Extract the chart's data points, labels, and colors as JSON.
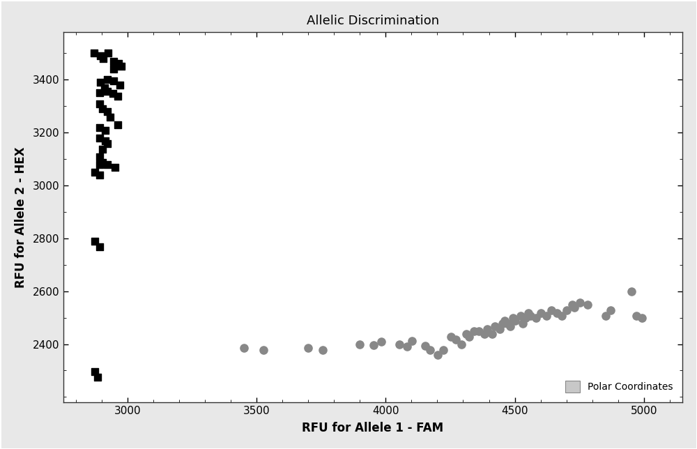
{
  "title": "Allelic Discrimination",
  "xlabel": "RFU for Allele 1 - FAM",
  "ylabel": "RFU for Allele 2 - HEX",
  "xlim": [
    2750,
    5150
  ],
  "ylim": [
    2180,
    3580
  ],
  "xticks": [
    3000,
    3500,
    4000,
    4500,
    5000
  ],
  "yticks": [
    2400,
    2600,
    2800,
    3000,
    3200,
    3400
  ],
  "legend_label": "Polar Coordinates",
  "black_squares": [
    [
      2870,
      3500
    ],
    [
      2895,
      3490
    ],
    [
      2905,
      3480
    ],
    [
      2925,
      3500
    ],
    [
      2945,
      3470
    ],
    [
      2965,
      3460
    ],
    [
      2945,
      3440
    ],
    [
      2975,
      3450
    ],
    [
      2895,
      3390
    ],
    [
      2920,
      3400
    ],
    [
      2945,
      3395
    ],
    [
      2970,
      3380
    ],
    [
      2910,
      3370
    ],
    [
      2892,
      3350
    ],
    [
      2922,
      3355
    ],
    [
      2942,
      3348
    ],
    [
      2962,
      3338
    ],
    [
      2892,
      3308
    ],
    [
      2902,
      3290
    ],
    [
      2922,
      3278
    ],
    [
      2932,
      3258
    ],
    [
      2962,
      3228
    ],
    [
      2892,
      3218
    ],
    [
      2912,
      3208
    ],
    [
      2892,
      3178
    ],
    [
      2912,
      3168
    ],
    [
      2922,
      3158
    ],
    [
      2902,
      3138
    ],
    [
      2892,
      3108
    ],
    [
      2902,
      3088
    ],
    [
      2892,
      3078
    ],
    [
      2922,
      3078
    ],
    [
      2952,
      3068
    ],
    [
      2872,
      3050
    ],
    [
      2892,
      3040
    ],
    [
      2872,
      2790
    ],
    [
      2892,
      2768
    ],
    [
      2872,
      2295
    ],
    [
      2882,
      2275
    ]
  ],
  "gray_circles": [
    [
      3450,
      2385
    ],
    [
      3525,
      2378
    ],
    [
      3700,
      2385
    ],
    [
      3755,
      2378
    ],
    [
      3900,
      2400
    ],
    [
      3952,
      2395
    ],
    [
      3982,
      2408
    ],
    [
      4052,
      2400
    ],
    [
      4082,
      2390
    ],
    [
      4102,
      2413
    ],
    [
      4152,
      2393
    ],
    [
      4172,
      2378
    ],
    [
      4202,
      2358
    ],
    [
      4222,
      2378
    ],
    [
      4252,
      2428
    ],
    [
      4272,
      2418
    ],
    [
      4292,
      2398
    ],
    [
      4312,
      2438
    ],
    [
      4322,
      2428
    ],
    [
      4342,
      2448
    ],
    [
      4362,
      2448
    ],
    [
      4382,
      2438
    ],
    [
      4392,
      2458
    ],
    [
      4412,
      2438
    ],
    [
      4422,
      2468
    ],
    [
      4442,
      2458
    ],
    [
      4452,
      2478
    ],
    [
      4462,
      2488
    ],
    [
      4472,
      2478
    ],
    [
      4482,
      2468
    ],
    [
      4492,
      2498
    ],
    [
      4502,
      2488
    ],
    [
      4522,
      2508
    ],
    [
      4532,
      2478
    ],
    [
      4542,
      2498
    ],
    [
      4552,
      2518
    ],
    [
      4562,
      2508
    ],
    [
      4582,
      2498
    ],
    [
      4602,
      2518
    ],
    [
      4622,
      2508
    ],
    [
      4642,
      2528
    ],
    [
      4662,
      2518
    ],
    [
      4682,
      2508
    ],
    [
      4702,
      2528
    ],
    [
      4722,
      2548
    ],
    [
      4732,
      2538
    ],
    [
      4752,
      2558
    ],
    [
      4782,
      2548
    ],
    [
      4852,
      2508
    ],
    [
      4872,
      2528
    ],
    [
      4952,
      2598
    ],
    [
      4972,
      2508
    ],
    [
      4992,
      2498
    ]
  ],
  "fig_bg": "#e8e8e8",
  "plot_bg": "#ffffff",
  "marker_size_square": 50,
  "marker_size_circle": 65
}
